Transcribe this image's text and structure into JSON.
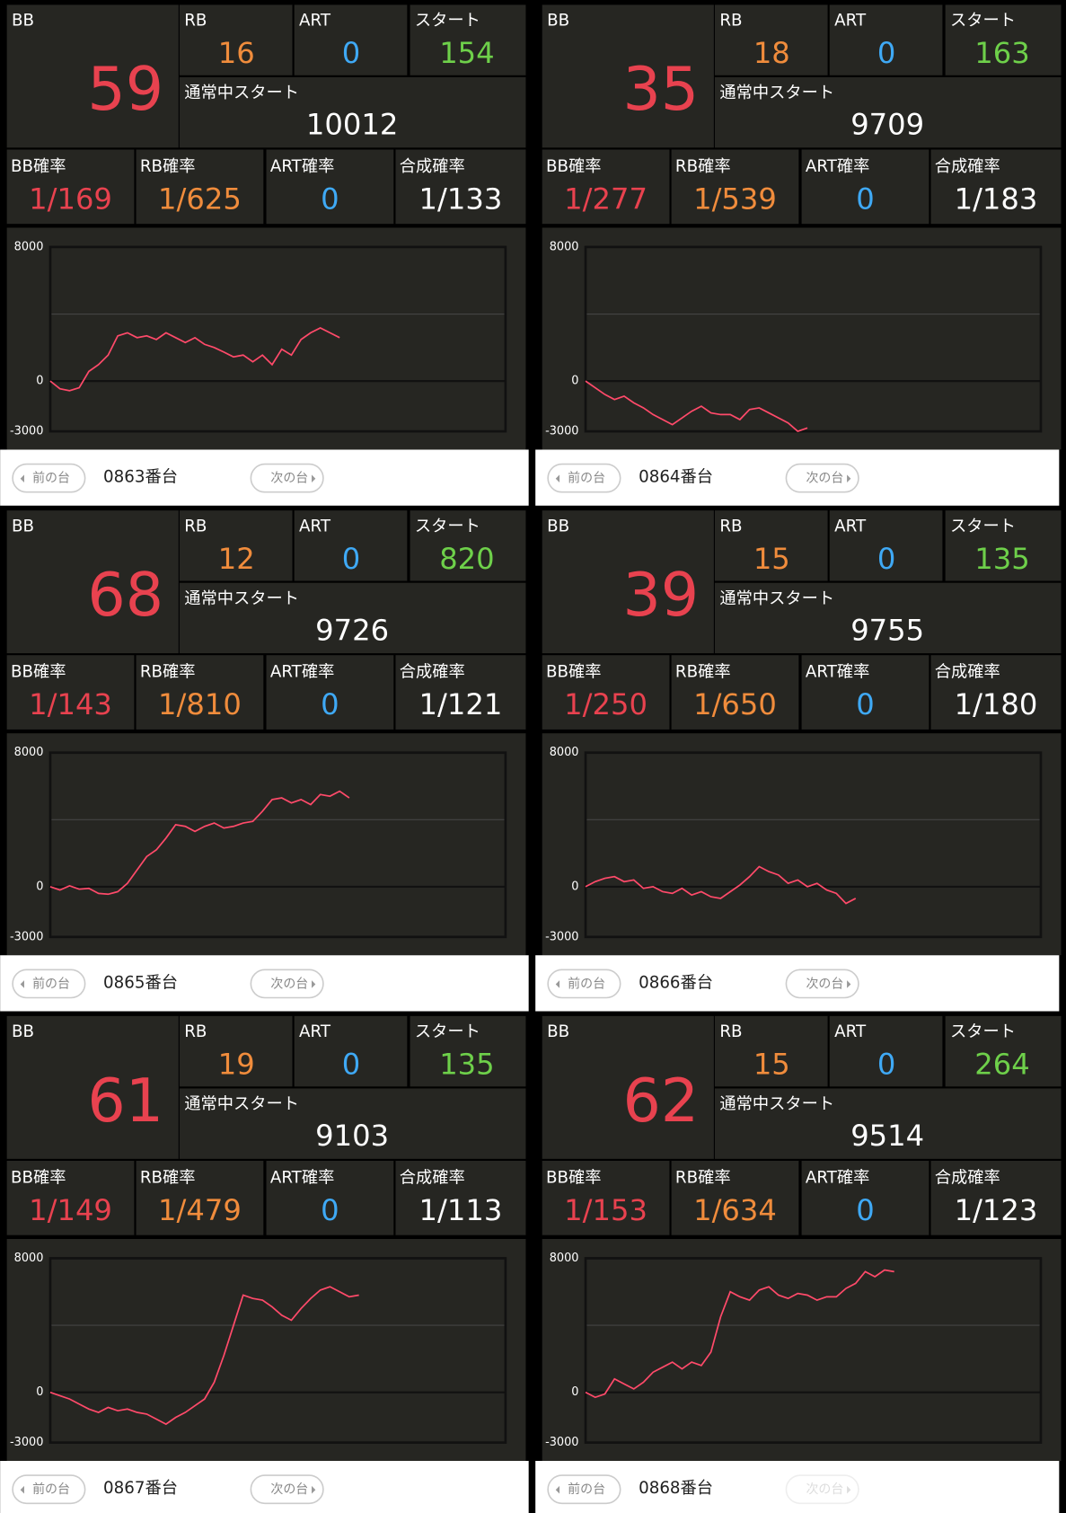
{
  "labels": {
    "bb": "BB",
    "rb": "RB",
    "art": "ART",
    "start": "スタート",
    "normal_start": "通常中スタート",
    "bb_rate": "BB確率",
    "rb_rate": "RB確率",
    "art_rate": "ART確率",
    "total_rate": "合成確率"
  },
  "nav": {
    "prev": "前の台",
    "next": "次の台"
  },
  "panels": [
    {
      "number": "0863番台",
      "bb": 59,
      "rb": 16,
      "art": 0,
      "start": 154,
      "normal_start": 10012,
      "bb_rate": "1/169",
      "rb_rate": "1/625",
      "art_rate": 0,
      "total_rate": "1/133",
      "chart": {
        "type": "line",
        "color": "#ff4a6a",
        "ylim": [
          -3000,
          8000
        ],
        "yticks": [
          -3000,
          0,
          8000
        ],
        "values": [
          0,
          -460,
          -576,
          -400,
          576,
          980,
          1550,
          2700,
          2880,
          2590,
          2700,
          2480,
          2880,
          2590,
          2300,
          2590,
          2190,
          2000,
          1730,
          1440,
          1550,
          1150,
          1550,
          980,
          1900,
          1550,
          2480,
          2880,
          3170,
          2880,
          2590
        ]
      }
    },
    {
      "number": "0864番台",
      "bb": 35,
      "rb": 18,
      "art": 0,
      "start": 163,
      "normal_start": 9709,
      "bb_rate": "1/277",
      "rb_rate": "1/539",
      "art_rate": 0,
      "total_rate": "1/183",
      "chart": {
        "type": "line",
        "color": "#ff4a6a",
        "ylim": [
          -3000,
          8000
        ],
        "yticks": [
          -3000,
          0,
          8000
        ],
        "values": [
          0,
          -400,
          -800,
          -1100,
          -900,
          -1300,
          -1600,
          -2000,
          -2300,
          -2600,
          -2200,
          -1800,
          -1500,
          -1900,
          -2000,
          -2000,
          -2300,
          -1700,
          -1600,
          -1900,
          -2200,
          -2500,
          -3000,
          -2800
        ]
      }
    },
    {
      "number": "0865番台",
      "bb": 68,
      "rb": 12,
      "art": 0,
      "start": 820,
      "normal_start": 9726,
      "bb_rate": "1/143",
      "rb_rate": "1/810",
      "art_rate": 0,
      "total_rate": "1/121",
      "chart": {
        "type": "line",
        "color": "#ff4a6a",
        "ylim": [
          -3000,
          8000
        ],
        "yticks": [
          -3000,
          0,
          8000
        ],
        "values": [
          0,
          -200,
          50,
          -150,
          -100,
          -400,
          -450,
          -300,
          200,
          1000,
          1800,
          2200,
          2900,
          3700,
          3600,
          3300,
          3600,
          3800,
          3500,
          3600,
          3800,
          3900,
          4500,
          5200,
          5300,
          5000,
          5200,
          4900,
          5500,
          5400,
          5700,
          5300
        ]
      }
    },
    {
      "number": "0866番台",
      "bb": 39,
      "rb": 15,
      "art": 0,
      "start": 135,
      "normal_start": 9755,
      "bb_rate": "1/250",
      "rb_rate": "1/650",
      "art_rate": 0,
      "total_rate": "1/180",
      "chart": {
        "type": "line",
        "color": "#ff4a6a",
        "ylim": [
          -3000,
          8000
        ],
        "yticks": [
          -3000,
          0,
          8000
        ],
        "values": [
          0,
          300,
          500,
          600,
          300,
          400,
          -100,
          0,
          -300,
          -400,
          -100,
          -500,
          -300,
          -600,
          -700,
          -300,
          100,
          600,
          1200,
          900,
          700,
          200,
          400,
          0,
          200,
          -200,
          -400,
          -1000,
          -700
        ]
      }
    },
    {
      "number": "0867番台",
      "bb": 61,
      "rb": 19,
      "art": 0,
      "start": 135,
      "normal_start": 9103,
      "bb_rate": "1/149",
      "rb_rate": "1/479",
      "art_rate": 0,
      "total_rate": "1/113",
      "chart": {
        "type": "line",
        "color": "#ff4a6a",
        "ylim": [
          -3000,
          8000
        ],
        "yticks": [
          -3000,
          0,
          8000
        ],
        "values": [
          0,
          -200,
          -400,
          -700,
          -1000,
          -1200,
          -900,
          -1100,
          -1000,
          -1200,
          -1300,
          -1600,
          -1900,
          -1500,
          -1200,
          -800,
          -400,
          600,
          2200,
          4000,
          5800,
          5600,
          5500,
          5100,
          4600,
          4300,
          5000,
          5600,
          6100,
          6300,
          6000,
          5700,
          5800
        ]
      }
    },
    {
      "number": "0868番台",
      "bb": 62,
      "rb": 15,
      "art": 0,
      "start": 264,
      "normal_start": 9514,
      "bb_rate": "1/153",
      "rb_rate": "1/634",
      "art_rate": 0,
      "total_rate": "1/123",
      "chart": {
        "type": "line",
        "color": "#ff4a6a",
        "ylim": [
          -3000,
          8000
        ],
        "yticks": [
          -3000,
          0,
          8000
        ],
        "values": [
          0,
          -300,
          -100,
          800,
          500,
          200,
          600,
          1200,
          1500,
          1800,
          1400,
          1800,
          1600,
          2400,
          4500,
          6000,
          5700,
          5500,
          6100,
          6300,
          5800,
          5600,
          5900,
          5800,
          5500,
          5700,
          5700,
          6200,
          6500,
          7200,
          6900,
          7300,
          7200
        ]
      }
    }
  ]
}
